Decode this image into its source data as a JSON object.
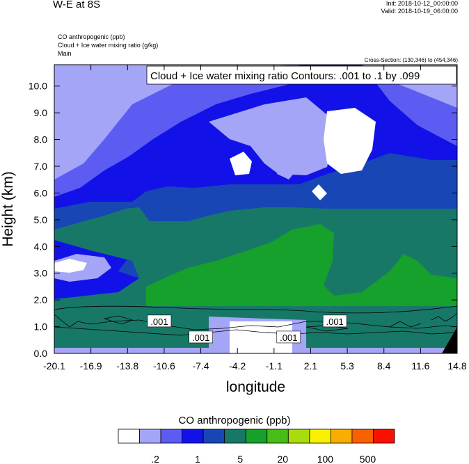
{
  "header": {
    "title": "W-E at 8S",
    "init": "Init: 2018-10-12_00:00:00",
    "valid": "Valid: 2018-10-19_06:00:00",
    "fields": [
      "CO anthropogenic   (ppb)",
      "Cloud + Ice water mixing ratio   (g/kg)",
      "Main"
    ],
    "cross_section": "Cross-Section: (130,346) to (454,346)"
  },
  "chart_data": {
    "type": "heatmap",
    "title": "W-E at 8S",
    "contour_label": "Cloud + Ice water mixing ratio Contours: .001 to .1 by .099",
    "xlabel": "longitude",
    "ylabel": "Height (km)",
    "x_ticks": [
      "-20.1",
      "-16.9",
      "-13.8",
      "-10.6",
      "-7.4",
      "-4.2",
      "-1.1",
      "2.1",
      "5.3",
      "8.4",
      "11.6",
      "14.8"
    ],
    "y_ticks": [
      "0.0",
      "1.0",
      "2.0",
      "3.0",
      "4.0",
      "5.0",
      "6.0",
      "7.0",
      "8.0",
      "9.0",
      "10.0"
    ],
    "xlim": [
      -20.1,
      14.8
    ],
    "ylim": [
      0.0,
      10.8
    ],
    "contour_labels": [
      {
        "text": ".001",
        "x": -11.0,
        "y": 1.2
      },
      {
        "text": ".001",
        "x": -7.4,
        "y": 0.6
      },
      {
        "text": ".001",
        "x": 0.2,
        "y": 0.6
      },
      {
        "text": ".001",
        "x": 4.2,
        "y": 1.2
      }
    ],
    "colorbar": {
      "title": "CO anthropogenic  (ppb)",
      "colors": [
        "#ffffff",
        "#a5a5f8",
        "#5c5cf2",
        "#1212e8",
        "#1846b4",
        "#187868",
        "#16a02c",
        "#48bc18",
        "#a8dc0c",
        "#f8f000",
        "#f8ae00",
        "#f86000",
        "#f81000"
      ],
      "tick_labels": [
        ".2",
        "1",
        "5",
        "20",
        "100",
        "500"
      ]
    }
  }
}
